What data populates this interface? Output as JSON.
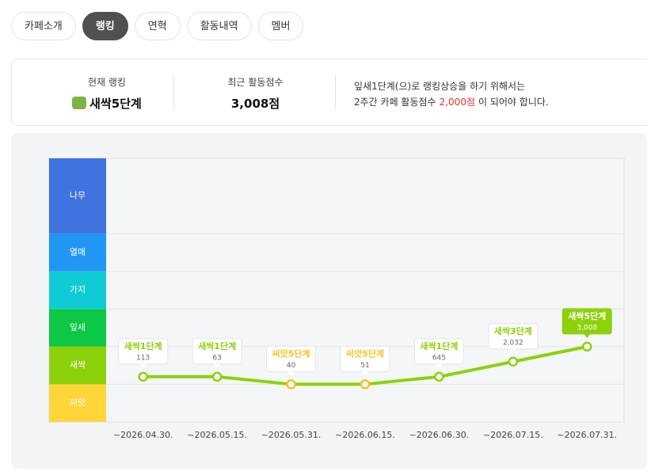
{
  "tabs": [
    "카페소개",
    "랭킹",
    "연혁",
    "활동내역",
    "멤버"
  ],
  "summary": {
    "current_rank_label": "현재 랭킹",
    "current_rank": "새싹5단계",
    "score_label": "최근 활동점수",
    "score": "3,008점",
    "message_line1": "잎새1단계(으)로 랭킹상승을 하기 위해서는",
    "message_line2_before": "2주간 카페 활동점수",
    "message_line2_highlight": "2,000점",
    "message_line2_after": "이 되어야 합니다."
  },
  "chart_data": {
    "type": "line",
    "categories": [
      "~2026.04.30.",
      "~2026.05.15.",
      "~2026.05.31.",
      "~2026.06.15.",
      "~2026.06.30.",
      "~2026.07.15.",
      "~2026.07.31."
    ],
    "values": [
      6,
      6,
      5,
      5,
      6,
      8,
      10
    ],
    "rank_labels": [
      "새싹1단계",
      "새싹1단계",
      "씨앗5단계",
      "씨앗5단계",
      "새싹1단계",
      "새싹3단계",
      "새싹5단계"
    ],
    "scores": [
      "113",
      "63",
      "40",
      "51",
      "645",
      "2,032",
      "3,008"
    ],
    "color": "#8cd10a",
    "ylim": [
      0,
      35
    ],
    "yticks": [
      0,
      5,
      10,
      15,
      20,
      25
    ],
    "bands": [
      {
        "name": "씨앗",
        "color": "#ffd63a",
        "point_color": "#f5c224"
      },
      {
        "name": "새싹",
        "color": "#8cd10a",
        "point_color": "#8cd10a"
      },
      {
        "name": "잎새",
        "color": "#0cc846",
        "point_color": "#0cc846"
      },
      {
        "name": "가지",
        "color": "#0fcbd5",
        "point_color": "#0fcbd5"
      },
      {
        "name": "열매",
        "color": "#2196f3",
        "point_color": "#2196f3"
      },
      {
        "name": "나무",
        "color": "#3f73e0",
        "point_color": "#3f73e0"
      }
    ],
    "grid": true
  }
}
